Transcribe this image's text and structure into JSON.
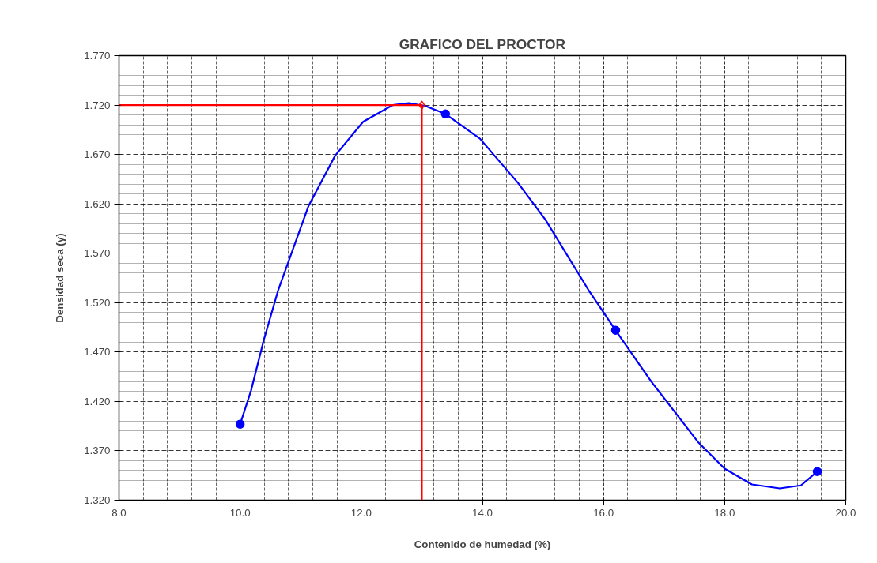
{
  "chart_data": {
    "type": "scatter",
    "title": "GRAFICO DEL PROCTOR",
    "xlabel": "Contenido de humedad (%)",
    "ylabel": "Densidad seca (γ)",
    "xlim": [
      8,
      20
    ],
    "ylim": [
      1.32,
      1.77
    ],
    "xticks": [
      {
        "value": 8,
        "label": "8.0"
      },
      {
        "value": 10,
        "label": "10.0"
      },
      {
        "value": 12,
        "label": "12.0"
      },
      {
        "value": 14,
        "label": "14.0"
      },
      {
        "value": 16,
        "label": "16.0"
      },
      {
        "value": 18,
        "label": "18.0"
      },
      {
        "value": 20,
        "label": "20.0"
      }
    ],
    "yticks": [
      {
        "value": 1.32,
        "label": "1.320"
      },
      {
        "value": 1.37,
        "label": "1.370"
      },
      {
        "value": 1.42,
        "label": "1.420"
      },
      {
        "value": 1.47,
        "label": "1.470"
      },
      {
        "value": 1.52,
        "label": "1.520"
      },
      {
        "value": 1.57,
        "label": "1.570"
      },
      {
        "value": 1.62,
        "label": "1.620"
      },
      {
        "value": 1.67,
        "label": "1.670"
      },
      {
        "value": 1.72,
        "label": "1.720"
      },
      {
        "value": 1.77,
        "label": "1.770"
      }
    ],
    "grid": true,
    "series": [
      {
        "type": "line",
        "color": "#0000ff",
        "marker": "none",
        "x": [
          10.0,
          10.18,
          10.39,
          10.63,
          11.13,
          11.57,
          12.03,
          12.52,
          12.79,
          13.06,
          13.39,
          13.96,
          14.59,
          15.04,
          15.75,
          16.2,
          16.79,
          17.56,
          18.0,
          18.45,
          18.91,
          19.26,
          19.53
        ],
        "values": [
          1.397,
          1.431,
          1.482,
          1.533,
          1.618,
          1.669,
          1.703,
          1.72,
          1.722,
          1.719,
          1.711,
          1.686,
          1.641,
          1.604,
          1.533,
          1.492,
          1.44,
          1.379,
          1.352,
          1.336,
          1.332,
          1.335,
          1.349
        ]
      },
      {
        "color": "#0000ff",
        "marker": "circle",
        "x": [
          10.0,
          13.39,
          16.2,
          19.53
        ],
        "values": [
          1.397,
          1.711,
          1.492,
          1.349
        ]
      },
      {
        "type": "line",
        "color": "#ff0000",
        "marker": "none",
        "x": [
          8,
          13.0,
          13.0
        ],
        "values": [
          1.72,
          1.72,
          1.32
        ]
      },
      {
        "color": "#ff0000",
        "marker": "diamond",
        "x": [
          13.0
        ],
        "values": [
          1.72
        ]
      }
    ]
  }
}
